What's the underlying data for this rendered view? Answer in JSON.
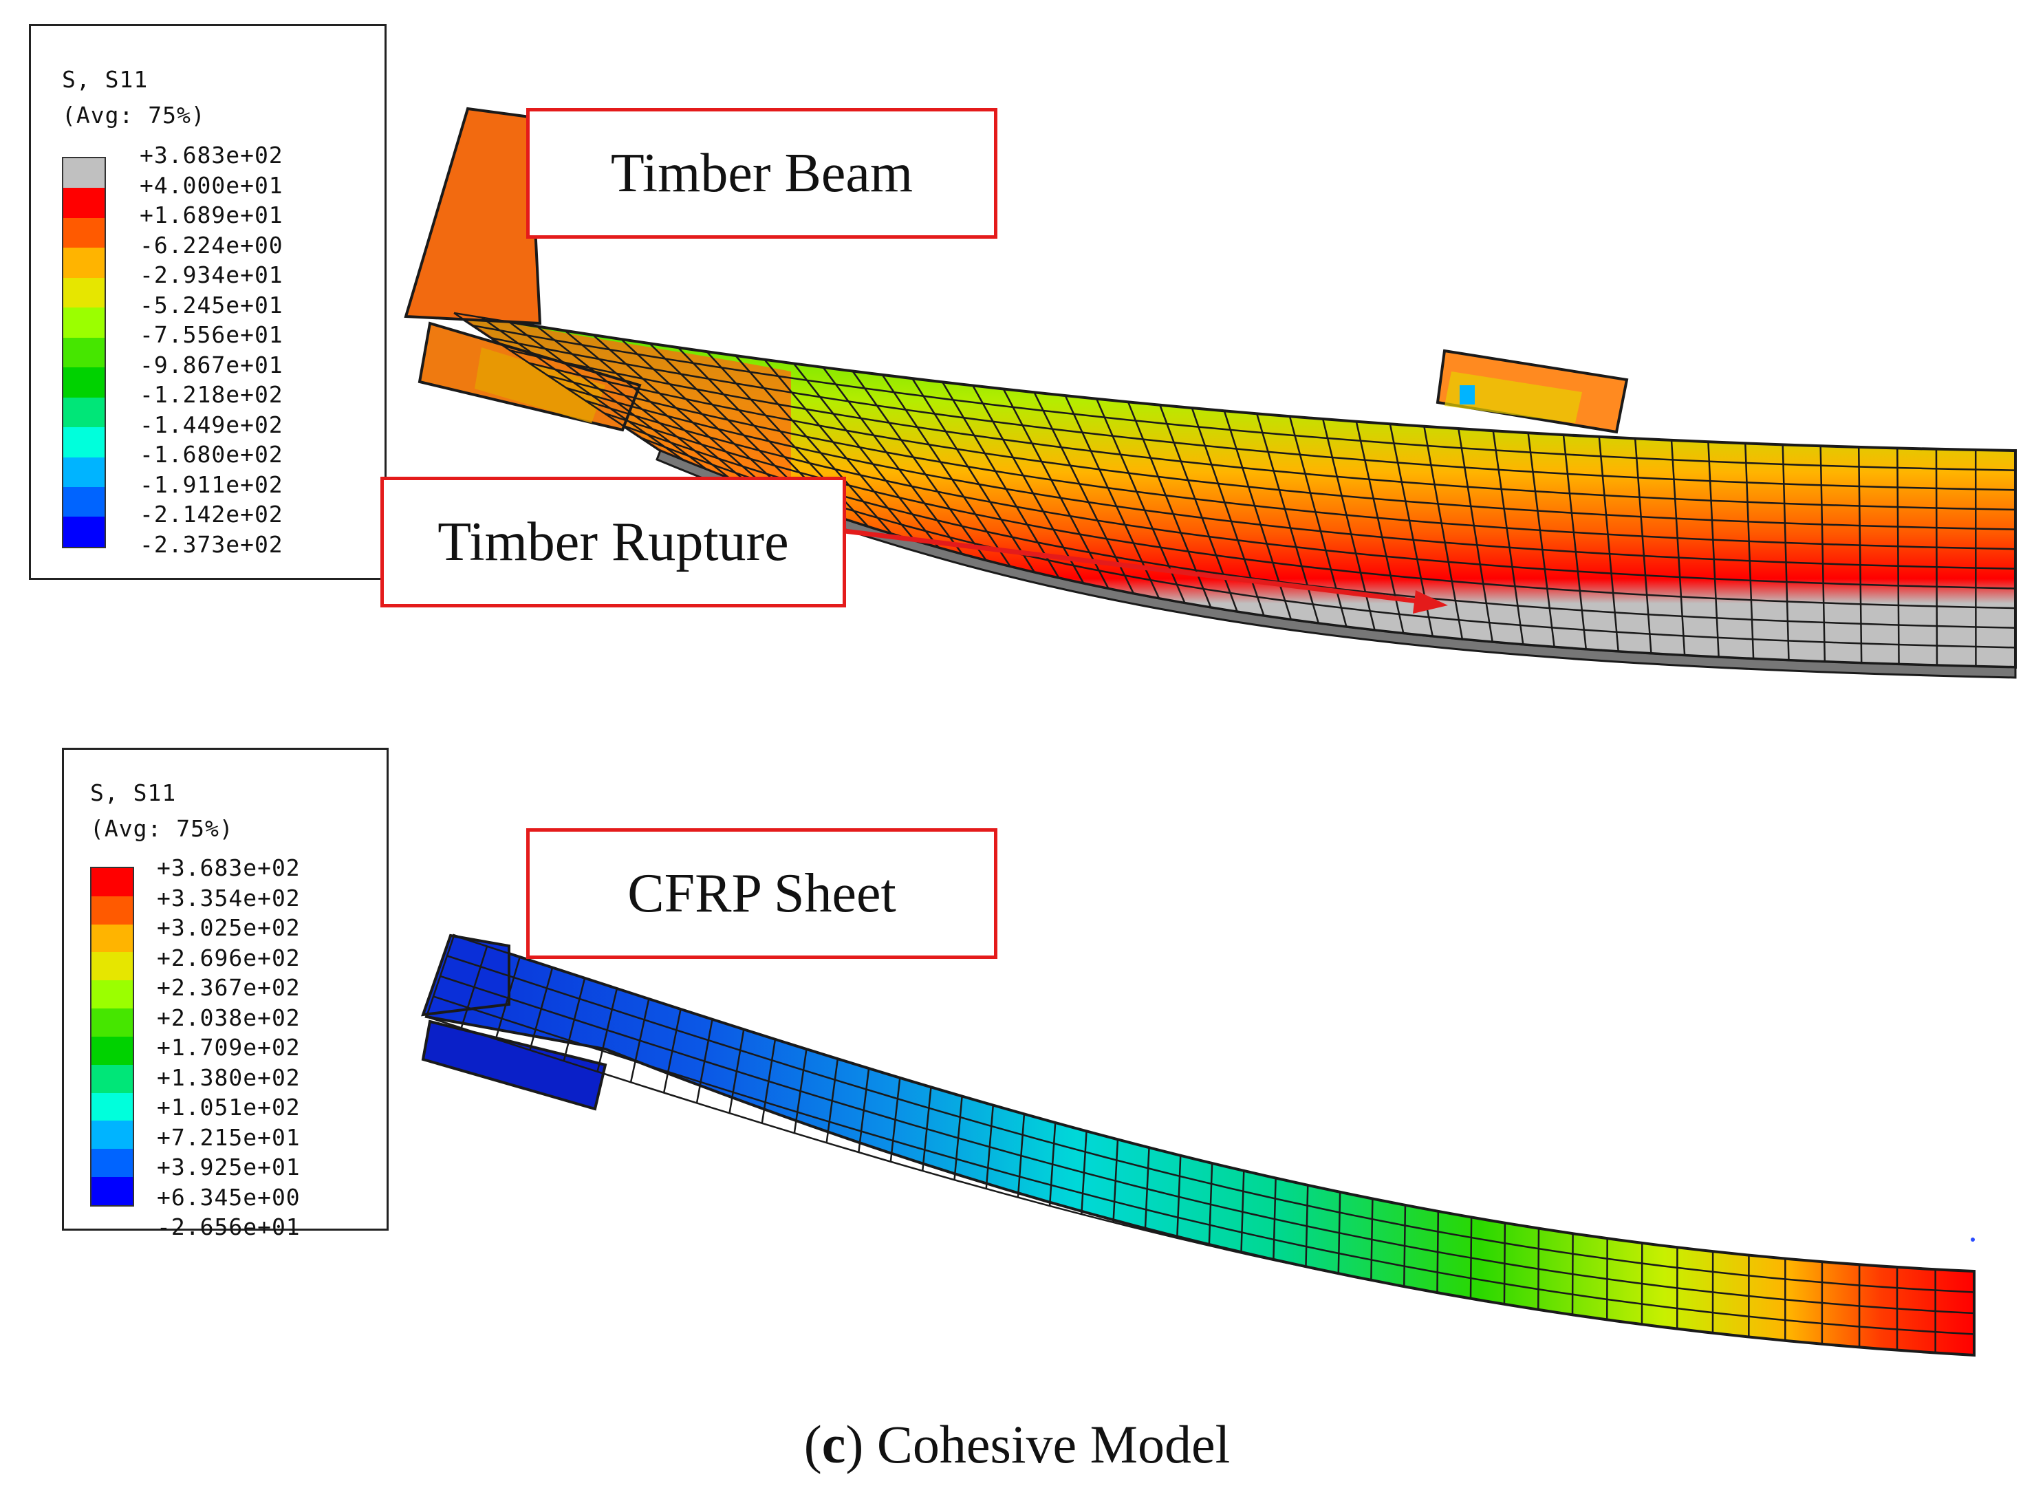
{
  "top_panel": {
    "legend": {
      "title_line1": "S, S11",
      "title_line2": "(Avg: 75%)",
      "values": [
        "+3.683e+02",
        "+4.000e+01",
        "+1.689e+01",
        "-6.224e+00",
        "-2.934e+01",
        "-5.245e+01",
        "-7.556e+01",
        "-9.867e+01",
        "-1.218e+02",
        "-1.449e+02",
        "-1.680e+02",
        "-1.911e+02",
        "-2.142e+02",
        "-2.373e+02"
      ],
      "colors": [
        "#c0c0c0",
        "#ff0000",
        "#ff5a00",
        "#ffb400",
        "#e6e600",
        "#9bff00",
        "#46e600",
        "#00d200",
        "#00e678",
        "#00ffdc",
        "#00b4ff",
        "#0064ff",
        "#0000ff"
      ]
    },
    "callout_beam": "Timber Beam",
    "callout_rupture": "Timber Rupture"
  },
  "bottom_panel": {
    "legend": {
      "title_line1": "S, S11",
      "title_line2": "(Avg: 75%)",
      "values": [
        "+3.683e+02",
        "+3.354e+02",
        "+3.025e+02",
        "+2.696e+02",
        "+2.367e+02",
        "+2.038e+02",
        "+1.709e+02",
        "+1.380e+02",
        "+1.051e+02",
        "+7.215e+01",
        "+3.925e+01",
        "+6.345e+00",
        "-2.656e+01"
      ],
      "colors": [
        "#ff0000",
        "#ff5a00",
        "#ffb400",
        "#e6e600",
        "#9bff00",
        "#46e600",
        "#00d200",
        "#00e678",
        "#00ffdc",
        "#00b4ff",
        "#0064ff",
        "#0000ff"
      ]
    },
    "callout_sheet": "CFRP Sheet"
  },
  "caption": {
    "label": "c",
    "text": ") Cohesive Model",
    "open": "("
  },
  "colors": {
    "callout_border": "#e41b1b",
    "mesh_line": "#1a1a1a"
  }
}
